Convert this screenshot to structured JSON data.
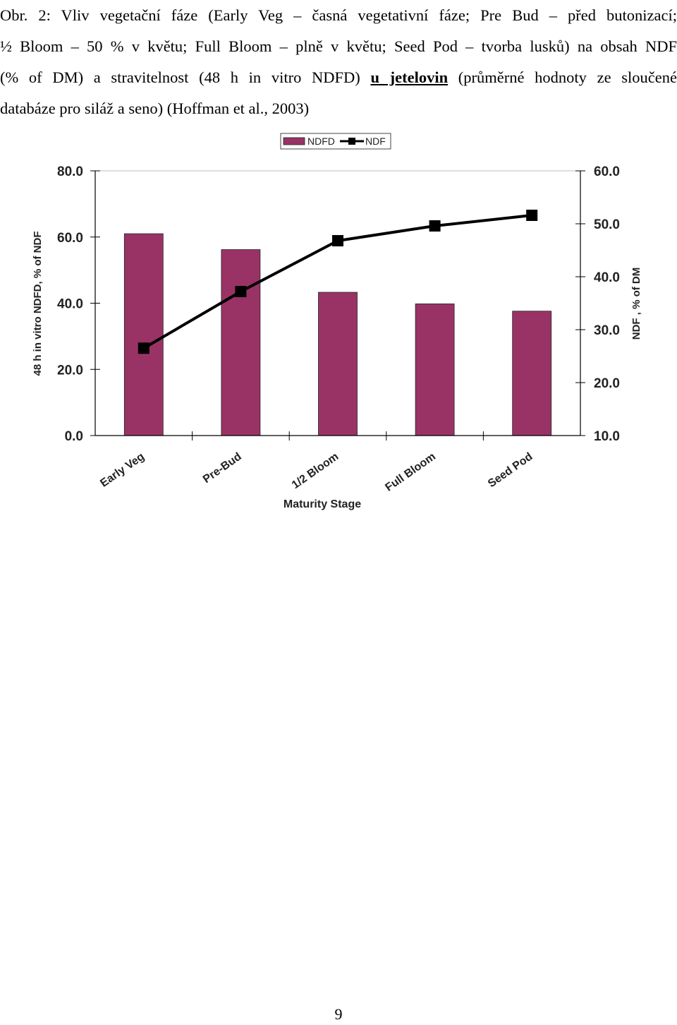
{
  "caption": {
    "line1": "Obr. 2: Vliv vegetační fáze (Early Veg – časná vegetativní fáze; Pre Bud – před butonizací;",
    "line2": "½ Bloom – 50 % v květu; Full Bloom – plně v květu; Seed Pod – tvorba lusků) na obsah NDF",
    "line3_a": "(% of DM) a stravitelnost (48 h in vitro NDFD) ",
    "line3_b": "u jetelovin",
    "line3_c": " (průměrné hodnoty ze sloučené",
    "line4": "databáze pro siláž a seno) (Hoffman et al., 2003)"
  },
  "chart_data": {
    "type": "bar",
    "categories": [
      "Early Veg",
      "Pre-Bud",
      "1/2 Bloom",
      "Full Bloom",
      "Seed Pod"
    ],
    "series": [
      {
        "name": "NDFD",
        "type": "bar",
        "axis": "left",
        "values": [
          61.0,
          56.2,
          43.3,
          39.8,
          37.6
        ],
        "color": "#993366"
      },
      {
        "name": "NDF",
        "type": "line",
        "axis": "right",
        "values": [
          26.5,
          37.2,
          46.8,
          49.6,
          51.6
        ],
        "color": "#000000"
      }
    ],
    "xlabel": "Maturity Stage",
    "ylabel": "48 h in vitro NDFD, % of NDF",
    "y2label": "NDF , % of DM",
    "ylim": [
      0,
      80
    ],
    "y2lim": [
      10,
      60
    ],
    "yticks": [
      "0.0",
      "20.0",
      "40.0",
      "60.0",
      "80.0"
    ],
    "y2ticks": [
      "10.0",
      "20.0",
      "30.0",
      "40.0",
      "50.0",
      "60.0"
    ],
    "grid": false,
    "legend_position": "top-center"
  },
  "page": {
    "number": "9"
  }
}
